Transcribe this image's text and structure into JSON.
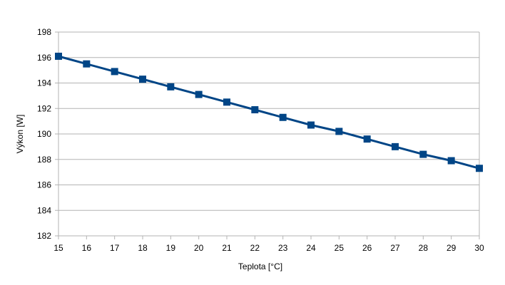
{
  "chart_data": {
    "type": "line",
    "title": "",
    "xlabel": "Teplota [°C]",
    "ylabel": "Výkon [W]",
    "x": [
      15,
      16,
      17,
      18,
      19,
      20,
      21,
      22,
      23,
      24,
      25,
      26,
      27,
      28,
      29,
      30
    ],
    "series": [
      {
        "values": [
          196.1,
          195.5,
          194.9,
          194.3,
          193.7,
          193.1,
          192.5,
          191.9,
          191.3,
          190.7,
          190.2,
          189.6,
          189.0,
          188.4,
          187.9,
          187.3
        ]
      }
    ],
    "xlim": [
      15,
      30
    ],
    "ylim": [
      182,
      198
    ],
    "yticks": [
      182,
      184,
      186,
      188,
      190,
      192,
      194,
      196,
      198
    ],
    "xticks": [
      15,
      16,
      17,
      18,
      19,
      20,
      21,
      22,
      23,
      24,
      25,
      26,
      27,
      28,
      29,
      30
    ],
    "grid": "horizontal",
    "legend": "none",
    "colors": {
      "series": "#004586",
      "grid": "#b3b3b3",
      "axis": "#b3b3b3"
    }
  }
}
